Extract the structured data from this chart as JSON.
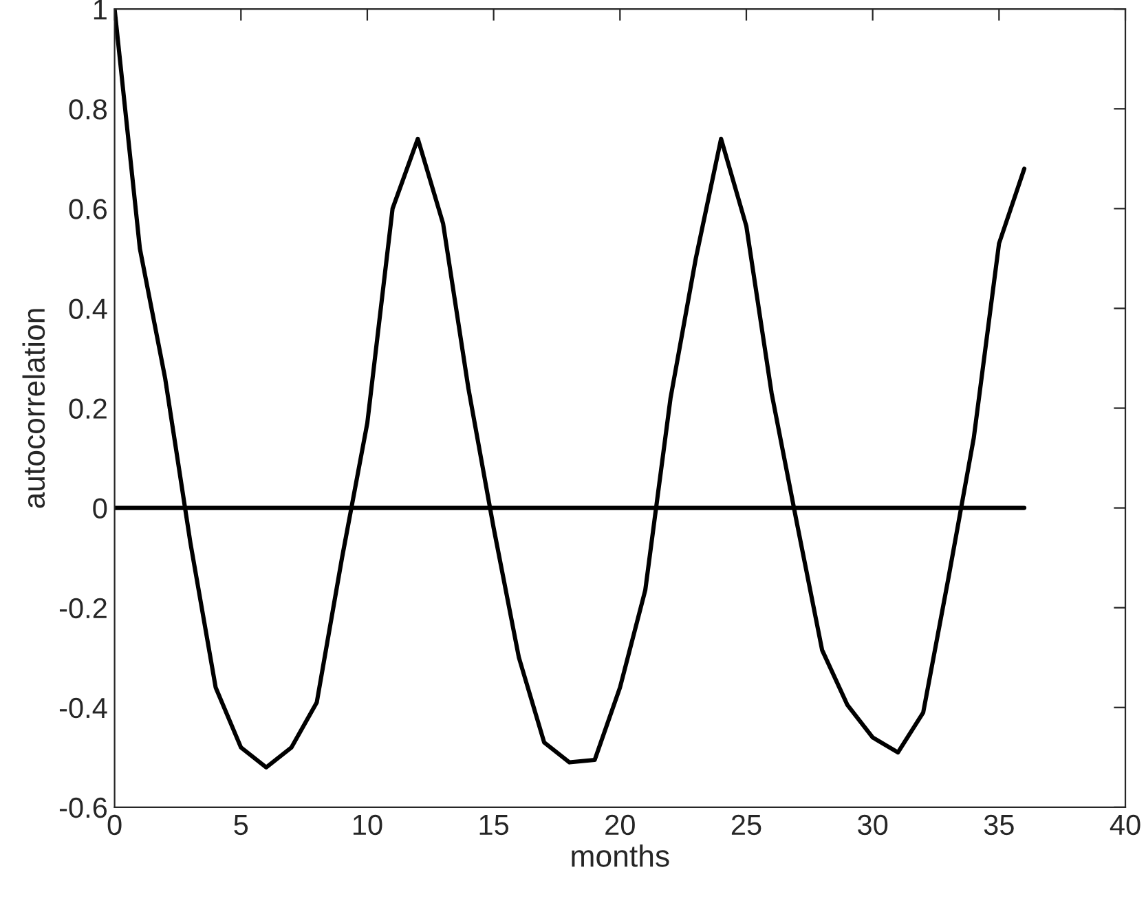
{
  "chart_data": {
    "type": "line",
    "xlabel": "months",
    "ylabel": "autocorrelation",
    "x": [
      0,
      1,
      2,
      3,
      4,
      5,
      6,
      7,
      8,
      9,
      10,
      11,
      12,
      13,
      14,
      15,
      16,
      17,
      18,
      19,
      20,
      21,
      22,
      23,
      24,
      25,
      26,
      27,
      28,
      29,
      30,
      31,
      32,
      33,
      34,
      35,
      36
    ],
    "series": [
      {
        "color": "#000000",
        "values": [
          1,
          0.52,
          0.26,
          -0.07,
          -0.36,
          -0.48,
          -0.52,
          -0.48,
          -0.39,
          -0.1,
          0.17,
          0.6,
          0.74,
          0.57,
          0.24,
          -0.04,
          -0.3,
          -0.47,
          -0.51,
          -0.505,
          -0.36,
          -0.165,
          0.22,
          0.5,
          0.74,
          0.565,
          0.23,
          -0.03,
          -0.285,
          -0.395,
          -0.46,
          -0.49,
          -0.41,
          -0.14,
          0.14,
          0.53,
          0.68
        ]
      },
      {
        "color": "#000000",
        "x": [
          0,
          36
        ],
        "values": [
          0,
          0
        ]
      }
    ],
    "xlim": [
      0,
      40
    ],
    "ylim": [
      -0.6,
      1
    ],
    "xticks": [
      0,
      5,
      10,
      15,
      20,
      25,
      30,
      35,
      40
    ],
    "yticks": [
      {
        "value": -0.6,
        "label": "-0.6"
      },
      {
        "value": -0.4,
        "label": "-0.4"
      },
      {
        "value": -0.2,
        "label": "-0.2"
      },
      0,
      {
        "value": 0.2,
        "label": "0.2"
      },
      {
        "value": 0.4,
        "label": "0.4"
      },
      {
        "value": 0.6,
        "label": "0.6"
      },
      {
        "value": 0.8,
        "label": "0.8"
      },
      1
    ],
    "grid": false,
    "legend": false,
    "marker": "none",
    "line_style": "solid"
  }
}
